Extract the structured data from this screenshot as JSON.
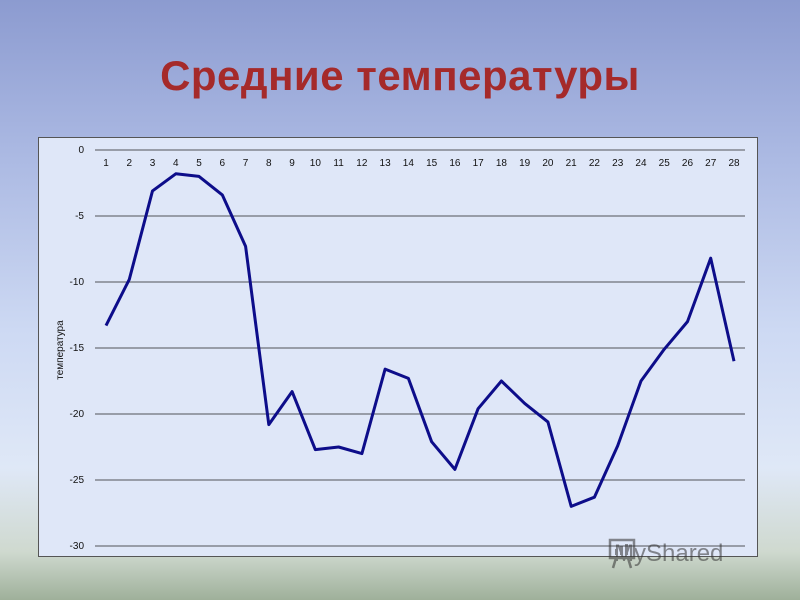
{
  "slide": {
    "title": "Средние температуры"
  },
  "watermark": {
    "text": "MyShared"
  },
  "chart_data": {
    "type": "line",
    "ylabel": "температура",
    "ylim": [
      -30,
      0
    ],
    "yticks": [
      0,
      -5,
      -10,
      -15,
      -20,
      -25,
      -30
    ],
    "grid": true,
    "x_axis_position": "top",
    "x": [
      1,
      2,
      3,
      4,
      5,
      6,
      7,
      8,
      9,
      10,
      11,
      12,
      13,
      14,
      15,
      16,
      17,
      18,
      19,
      20,
      21,
      22,
      23,
      24,
      25,
      26,
      27,
      28
    ],
    "series": [
      {
        "color": "#0d0d8a",
        "values": [
          -13.3,
          -9.8,
          -3.1,
          -1.8,
          -2.0,
          -3.4,
          -7.3,
          -20.8,
          -18.3,
          -22.7,
          -22.5,
          -23.0,
          -16.6,
          -17.3,
          -22.1,
          -24.2,
          -19.6,
          -17.5,
          -19.2,
          -20.6,
          -27.0,
          -26.3,
          -22.4,
          -17.5,
          -15.1,
          -13.0,
          -8.2,
          -16.0
        ]
      }
    ]
  }
}
